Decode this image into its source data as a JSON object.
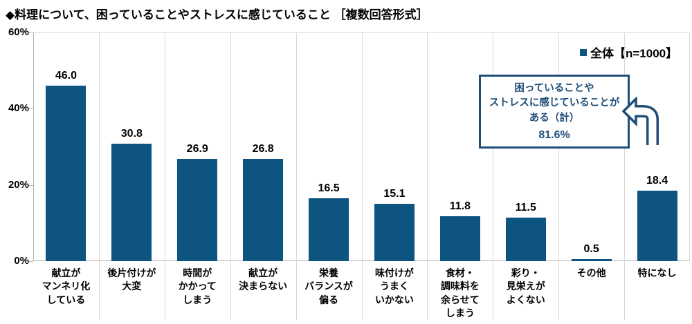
{
  "title": "◆料理について、困っていることやストレスに感じていること ［複数回答形式］",
  "legend": {
    "label": "全体【n=1000】",
    "marker_color": "#0d5480"
  },
  "callout": {
    "lines": "困っていることや\nストレスに感じていることが\nある（計）",
    "value": "81.6%",
    "border_color": "#1f4e79",
    "text_color": "#1f4e79"
  },
  "colors": {
    "bar": "#0d5480",
    "navy": "#1f4e79",
    "axis": "#b3b3b3",
    "separator": "#d9d9d9",
    "text": "#000000"
  },
  "chart_data": {
    "type": "bar",
    "title": "料理について、困っていることやストレスに感じていること ［複数回答形式］",
    "series_name": "全体【n=1000】",
    "n": 1000,
    "categories": [
      "献立がマンネリ化している",
      "後片付けが大変",
      "時間がかかってしまう",
      "献立が決まらない",
      "栄養バランスが偏る",
      "味付けがうまくいかない",
      "食材・調味料を余らせてしまう",
      "彩り・見栄えがよくない",
      "その他",
      "特になし"
    ],
    "category_lines": [
      [
        "献立が",
        "マンネリ化",
        "している"
      ],
      [
        "後片付けが",
        "大変"
      ],
      [
        "時間が",
        "かかって",
        "しまう"
      ],
      [
        "献立が",
        "決まらない"
      ],
      [
        "栄養",
        "バランスが",
        "偏る"
      ],
      [
        "味付けが",
        "うまく",
        "いかない"
      ],
      [
        "食材・",
        "調味料を",
        "余らせて",
        "しまう"
      ],
      [
        "彩り・",
        "見栄えが",
        "よくない"
      ],
      [
        "その他"
      ],
      [
        "特になし"
      ]
    ],
    "values": [
      46.0,
      30.8,
      26.9,
      26.8,
      16.5,
      15.1,
      11.8,
      11.5,
      0.5,
      18.4
    ],
    "value_unit": "%",
    "ylim": [
      0,
      60
    ],
    "ytick_values": [
      0,
      20,
      40,
      60
    ],
    "ytick_unit": "%",
    "grid": "vertical category separators only, no horizontal gridlines",
    "legend_position": "top-right",
    "summary": {
      "label": "困っていることやストレスに感じていることがある（計）",
      "value": 81.6
    }
  }
}
